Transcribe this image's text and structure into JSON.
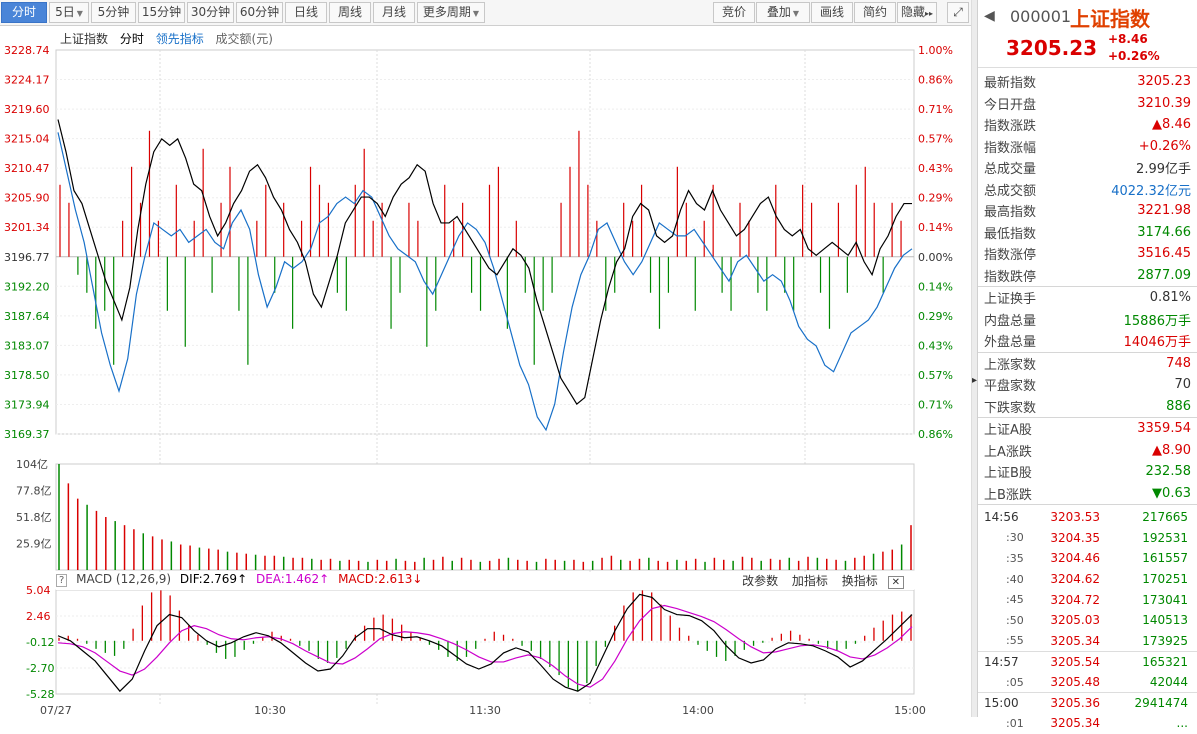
{
  "toolbar": {
    "tabs": [
      {
        "label": "分时",
        "active": true
      },
      {
        "label": "5日",
        "dd": true
      },
      {
        "label": "5分钟"
      },
      {
        "label": "15分钟"
      },
      {
        "label": "30分钟"
      },
      {
        "label": "60分钟"
      },
      {
        "label": "日线"
      },
      {
        "label": "周线"
      },
      {
        "label": "月线"
      },
      {
        "label": "更多周期",
        "dd": true
      }
    ],
    "right_buttons": [
      {
        "label": "竞价"
      },
      {
        "label": "叠加",
        "dd": true
      },
      {
        "label": "画线"
      },
      {
        "label": "简约"
      },
      {
        "label": "隐藏"
      }
    ],
    "more_glyph": "▸▸",
    "expand_glyph": "⤢"
  },
  "legend": {
    "name": "上证指数",
    "mode": "分时",
    "lead": "领先指标",
    "amount": "成交额(元)"
  },
  "chart_data": {
    "type": "line",
    "price_ticks": [
      "3228.74",
      "3224.17",
      "3219.60",
      "3215.04",
      "3210.47",
      "3205.90",
      "3201.34",
      "3196.77",
      "3192.20",
      "3187.64",
      "3183.07",
      "3178.50",
      "3173.94",
      "3169.37"
    ],
    "pct_ticks": [
      "1.00%",
      "0.86%",
      "0.71%",
      "0.57%",
      "0.43%",
      "0.29%",
      "0.14%",
      "0.00%",
      "0.14%",
      "0.29%",
      "0.43%",
      "0.57%",
      "0.71%",
      "0.86%"
    ],
    "prev_close": 3196.77,
    "ylim": [
      3169.37,
      3228.74
    ],
    "vol_ticks": [
      "104亿",
      "77.8亿",
      "51.8亿",
      "25.9亿"
    ],
    "macd_ticks": [
      "5.04",
      "2.46",
      "-0.12",
      "-2.70",
      "-5.28"
    ],
    "x_labels": [
      "07/27",
      "10:30",
      "11:30",
      "14:00",
      "15:00"
    ],
    "price_series": [
      3218,
      3213,
      3207,
      3205,
      3201,
      3197,
      3193,
      3190,
      3187,
      3192,
      3201,
      3208,
      3213,
      3215,
      3214,
      3215,
      3212,
      3208,
      3207,
      3203,
      3200,
      3202,
      3205,
      3207,
      3210,
      3211,
      3209,
      3206,
      3204,
      3201,
      3199,
      3196,
      3191,
      3189,
      3193,
      3197,
      3202,
      3204,
      3206,
      3206,
      3205,
      3203,
      3206,
      3208,
      3209,
      3211,
      3210,
      3205,
      3202,
      3202,
      3203,
      3201,
      3199,
      3197,
      3195,
      3194,
      3196,
      3198,
      3197,
      3195,
      3190,
      3186,
      3182,
      3178,
      3176,
      3174,
      3175,
      3181,
      3187,
      3192,
      3196,
      3198,
      3203,
      3205,
      3204,
      3200,
      3199,
      3200,
      3204,
      3207,
      3205,
      3204,
      3207,
      3204,
      3202,
      3200,
      3201,
      3203,
      3205,
      3206,
      3203,
      3201,
      3200,
      3201,
      3198,
      3197,
      3198,
      3199,
      3198,
      3197,
      3199,
      3196,
      3194,
      3198,
      3200,
      3203,
      3205,
      3205
    ],
    "lead_series": [
      3216,
      3210,
      3204,
      3199,
      3192,
      3185,
      3180,
      3176,
      3181,
      3191,
      3197,
      3202,
      3201,
      3200,
      3201,
      3199,
      3200,
      3201,
      3199,
      3198,
      3202,
      3204,
      3201,
      3194,
      3189,
      3192,
      3196,
      3195,
      3196,
      3198,
      3202,
      3203,
      3205,
      3206,
      3205,
      3207,
      3206,
      3203,
      3200,
      3198,
      3197,
      3196,
      3193,
      3191,
      3194,
      3197,
      3200,
      3202,
      3201,
      3199,
      3195,
      3190,
      3185,
      3180,
      3177,
      3172,
      3170,
      3174,
      3182,
      3189,
      3194,
      3197,
      3201,
      3202,
      3199,
      3196,
      3194,
      3196,
      3199,
      3202,
      3201,
      3200,
      3200,
      3201,
      3199,
      3197,
      3195,
      3193,
      3196,
      3197,
      3195,
      3193,
      3194,
      3193,
      3190,
      3186,
      3184,
      3183,
      3180,
      3179,
      3182,
      3185,
      3186,
      3187,
      3189,
      3192,
      3195,
      3197,
      3198
    ],
    "pct_bars": [
      4,
      3,
      -1,
      -2,
      -4,
      -3,
      -6,
      2,
      5,
      3,
      7,
      2,
      -3,
      4,
      -5,
      2,
      6,
      -2,
      3,
      5,
      -3,
      -6,
      2,
      4,
      -2,
      3,
      -4,
      2,
      5,
      4,
      3,
      -2,
      -3,
      4,
      6,
      2,
      3,
      -4,
      -2,
      3,
      2,
      -5,
      -3,
      4,
      2,
      3,
      -2,
      -3,
      4,
      5,
      -4,
      2,
      -2,
      -6,
      -3,
      -2,
      3,
      5,
      7,
      4,
      2,
      -3,
      -2,
      3,
      2,
      4,
      -2,
      -4,
      -2,
      5,
      3,
      -3,
      2,
      4,
      -2,
      -3,
      3,
      2,
      -2,
      -3,
      4,
      -2,
      -3,
      4,
      3,
      -2,
      -4,
      3,
      -2,
      4,
      5,
      3,
      -2,
      3,
      2
    ],
    "volume": [
      104,
      85,
      70,
      64,
      58,
      52,
      48,
      44,
      40,
      36,
      33,
      30,
      28,
      25,
      24,
      22,
      21,
      20,
      18,
      17,
      16,
      15,
      14,
      14,
      13,
      12,
      12,
      11,
      10,
      11,
      9,
      10,
      9,
      8,
      10,
      9,
      11,
      9,
      8,
      12,
      10,
      13,
      9,
      12,
      10,
      8,
      9,
      11,
      12,
      10,
      9,
      8,
      11,
      10,
      9,
      10,
      8,
      9,
      12,
      14,
      10,
      9,
      11,
      12,
      9,
      8,
      10,
      9,
      11,
      8,
      12,
      10,
      9,
      13,
      12,
      9,
      11,
      10,
      12,
      9,
      13,
      12,
      11,
      10,
      9,
      12,
      14,
      16,
      18,
      20,
      25,
      44
    ],
    "macd_hist": [
      0.3,
      0.5,
      0.2,
      -0.3,
      -0.8,
      -1.2,
      -1.5,
      -0.8,
      1.2,
      3.5,
      4.8,
      5.0,
      4.5,
      3.0,
      1.5,
      0.6,
      -0.4,
      -1.2,
      -1.8,
      -1.6,
      -0.9,
      -0.3,
      0.4,
      0.9,
      0.5,
      0.2,
      -0.5,
      -1.0,
      -1.8,
      -2.2,
      -1.7,
      -0.8,
      0.6,
      1.5,
      2.3,
      2.6,
      2.2,
      1.6,
      0.9,
      0.3,
      -0.4,
      -0.9,
      -1.6,
      -2.0,
      -1.6,
      -0.8,
      0.2,
      0.9,
      0.6,
      0.2,
      -0.5,
      -1.0,
      -1.8,
      -2.6,
      -3.4,
      -4.6,
      -5.0,
      -4.2,
      -2.5,
      -0.6,
      1.5,
      3.5,
      4.8,
      5.0,
      4.8,
      3.6,
      2.5,
      1.3,
      0.5,
      -0.4,
      -1.0,
      -1.6,
      -2.0,
      -1.5,
      -0.9,
      -0.5,
      -0.2,
      0.3,
      0.7,
      1.0,
      0.6,
      0.2,
      -0.3,
      -0.8,
      -1.0,
      -0.8,
      -0.3,
      0.5,
      1.3,
      2.0,
      2.6,
      2.9,
      2.6
    ],
    "dif_series": [
      0.5,
      0.0,
      -1.0,
      -2.0,
      -3.5,
      -5.0,
      -3.8,
      -1.0,
      1.5,
      2.6,
      2.3,
      1.0,
      0.0,
      -0.6,
      -0.2,
      0.4,
      0.8,
      0.5,
      -0.2,
      -1.2,
      -2.2,
      -3.0,
      -2.8,
      -1.5,
      0.3,
      1.2,
      1.2,
      0.6,
      0.3,
      0.4,
      0.0,
      -0.5,
      -1.4,
      -2.3,
      -2.8,
      -2.3,
      -1.2,
      -0.7,
      -1.1,
      -2.4,
      -3.8,
      -4.6,
      -5.0,
      -4.2,
      -1.6,
      1.0,
      3.2,
      4.6,
      4.3,
      3.1,
      2.6,
      2.5,
      2.0,
      1.0,
      -0.5,
      -1.7,
      -2.2,
      -1.9,
      -0.8,
      -0.2,
      -0.3,
      -0.5,
      -1.0,
      -1.6,
      -2.6,
      -2.0,
      -0.9,
      0.2,
      1.4,
      2.6
    ],
    "dea_series": [
      -0.2,
      -0.3,
      -0.6,
      -1.2,
      -2.1,
      -3.0,
      -3.4,
      -2.8,
      -1.6,
      -0.2,
      1.0,
      1.5,
      1.2,
      0.6,
      0.2,
      0.1,
      0.3,
      0.4,
      0.2,
      -0.3,
      -1.0,
      -1.6,
      -2.2,
      -2.3,
      -1.7,
      -0.8,
      0.2,
      0.7,
      0.9,
      0.8,
      0.6,
      0.2,
      -0.3,
      -0.9,
      -1.6,
      -2.1,
      -2.1,
      -1.7,
      -1.4,
      -1.7,
      -2.5,
      -3.5,
      -4.3,
      -4.6,
      -3.8,
      -2.0,
      0.2,
      2.0,
      3.2,
      3.5,
      3.2,
      2.8,
      2.4,
      1.9,
      1.1,
      0.2,
      -0.6,
      -1.2,
      -1.1,
      -0.8,
      -0.5,
      -0.4,
      -0.6,
      -1.0,
      -1.6,
      -1.8,
      -1.4,
      -0.7,
      0.2,
      1.4
    ]
  },
  "macd": {
    "title": "MACD (12,26,9)",
    "dif": "DIF:2.769↑",
    "dea": "DEA:1.462↑",
    "macd": "MACD:2.613↓",
    "btn_params": "改参数",
    "btn_add": "加指标",
    "btn_switch": "换指标"
  },
  "quote": {
    "code": "000001",
    "name": "上证指数",
    "price": "3205.23",
    "chg": "+8.46",
    "chg_pct": "+0.26%",
    "arrow": "◀",
    "rows1": [
      {
        "l": "最新指数",
        "v": "3205.23",
        "c": "red"
      },
      {
        "l": "今日开盘",
        "v": "3210.39",
        "c": "red"
      },
      {
        "l": "指数涨跌",
        "v": "▲8.46",
        "c": "red"
      },
      {
        "l": "指数涨幅",
        "v": "+0.26%",
        "c": "red"
      },
      {
        "l": "总成交量",
        "v": "2.99亿手",
        "c": ""
      },
      {
        "l": "总成交额",
        "v": "4022.32亿元",
        "c": "blue"
      },
      {
        "l": "最高指数",
        "v": "3221.98",
        "c": "red"
      },
      {
        "l": "最低指数",
        "v": "3174.66",
        "c": "green"
      },
      {
        "l": "指数涨停",
        "v": "3516.45",
        "c": "red"
      },
      {
        "l": "指数跌停",
        "v": "2877.09",
        "c": "green"
      }
    ],
    "rows2": [
      {
        "l": "上证换手",
        "v": "0.81%",
        "c": ""
      },
      {
        "l": "内盘总量",
        "v": "15886万手",
        "c": "green"
      },
      {
        "l": "外盘总量",
        "v": "14046万手",
        "c": "red"
      }
    ],
    "rows3": [
      {
        "l": "上涨家数",
        "v": "748",
        "c": "red"
      },
      {
        "l": "平盘家数",
        "v": "70",
        "c": ""
      },
      {
        "l": "下跌家数",
        "v": "886",
        "c": "green"
      }
    ],
    "rows4": [
      {
        "l": "上证A股",
        "v": "3359.54",
        "c": "red"
      },
      {
        "l": "上A涨跌",
        "v": "▲8.90",
        "c": "red"
      },
      {
        "l": "上证B股",
        "v": "232.58",
        "c": "green"
      },
      {
        "l": "上B涨跌",
        "v": "▼0.63",
        "c": "green"
      }
    ],
    "ticks": [
      {
        "t": "14:56",
        "p": "3203.53",
        "v": "217665"
      },
      {
        "t": ":30",
        "p": "3204.35",
        "v": "192531"
      },
      {
        "t": ":35",
        "p": "3204.46",
        "v": "161557"
      },
      {
        "t": ":40",
        "p": "3204.62",
        "v": "170251"
      },
      {
        "t": ":45",
        "p": "3204.72",
        "v": "173041"
      },
      {
        "t": ":50",
        "p": "3205.03",
        "v": "140513"
      },
      {
        "t": ":55",
        "p": "3205.34",
        "v": "173925"
      },
      {
        "t": "14:57",
        "p": "3205.54",
        "v": "165321"
      },
      {
        "t": ":05",
        "p": "3205.48",
        "v": "42044"
      },
      {
        "t": "15:00",
        "p": "3205.36",
        "v": "2941474"
      },
      {
        "t": ":01",
        "p": "3205.34",
        "v": "..."
      }
    ]
  },
  "colors": {
    "up": "#d90000",
    "down": "#008800",
    "price": "#000000",
    "lead": "#1870c8",
    "dea": "#cc00cc"
  }
}
